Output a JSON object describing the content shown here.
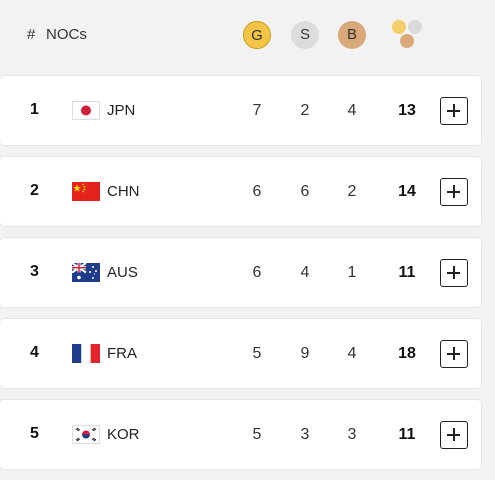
{
  "header": {
    "hash": "#",
    "nocs": "NOCs",
    "gold": "G",
    "silver": "S",
    "bronze": "B",
    "total_icon": "medals-total-icon"
  },
  "colors": {
    "gold": "#f4c447",
    "silver": "#dcdcdc",
    "bronze": "#d9a979"
  },
  "rows": [
    {
      "rank": "1",
      "flag_icon": "japan-flag-icon",
      "noc": "JPN",
      "gold": "7",
      "silver": "2",
      "bronze": "4",
      "total": "13"
    },
    {
      "rank": "2",
      "flag_icon": "china-flag-icon",
      "noc": "CHN",
      "gold": "6",
      "silver": "6",
      "bronze": "2",
      "total": "14"
    },
    {
      "rank": "3",
      "flag_icon": "australia-flag-icon",
      "noc": "AUS",
      "gold": "6",
      "silver": "4",
      "bronze": "1",
      "total": "11"
    },
    {
      "rank": "4",
      "flag_icon": "france-flag-icon",
      "noc": "FRA",
      "gold": "5",
      "silver": "9",
      "bronze": "4",
      "total": "18"
    },
    {
      "rank": "5",
      "flag_icon": "korea-flag-icon",
      "noc": "KOR",
      "gold": "5",
      "silver": "3",
      "bronze": "3",
      "total": "11"
    }
  ]
}
